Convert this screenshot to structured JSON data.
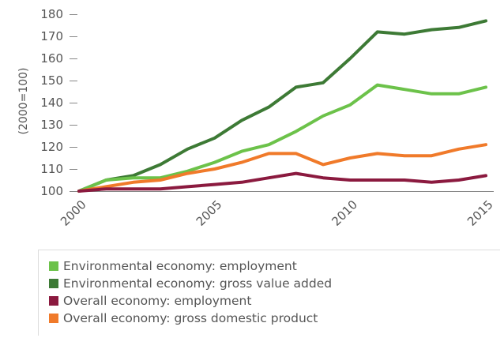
{
  "chart_data": {
    "type": "line",
    "title": "",
    "xlabel": "",
    "ylabel": "(2000=100)",
    "x": [
      2000,
      2001,
      2002,
      2003,
      2004,
      2005,
      2006,
      2007,
      2008,
      2009,
      2010,
      2011,
      2012,
      2013,
      2014,
      2015
    ],
    "xticks": [
      "2000",
      "2005",
      "2010",
      "2015"
    ],
    "yticks": [
      "100",
      "110",
      "120",
      "130",
      "140",
      "150",
      "160",
      "170",
      "180"
    ],
    "ylim": [
      100,
      180
    ],
    "grid": false,
    "legend_position": "bottom",
    "series": [
      {
        "name": "Environmental economy: employment",
        "color": "#6cc24a",
        "values": [
          100,
          105,
          106,
          106,
          109,
          113,
          118,
          121,
          127,
          134,
          139,
          148,
          146,
          144,
          144,
          147
        ]
      },
      {
        "name": "Environmental economy: gross value added",
        "color": "#3d7a35",
        "values": [
          100,
          105,
          107,
          112,
          119,
          124,
          132,
          138,
          147,
          149,
          160,
          172,
          171,
          173,
          174,
          177
        ]
      },
      {
        "name": "Overall economy: employment",
        "color": "#8b1a3f",
        "values": [
          100,
          101,
          101,
          101,
          102,
          103,
          104,
          106,
          108,
          106,
          105,
          105,
          105,
          104,
          105,
          107
        ]
      },
      {
        "name": "Overall economy: gross domestic product",
        "color": "#f07a2a",
        "values": [
          100,
          102,
          104,
          105,
          108,
          110,
          113,
          117,
          117,
          112,
          115,
          117,
          116,
          116,
          119,
          121
        ]
      }
    ]
  }
}
